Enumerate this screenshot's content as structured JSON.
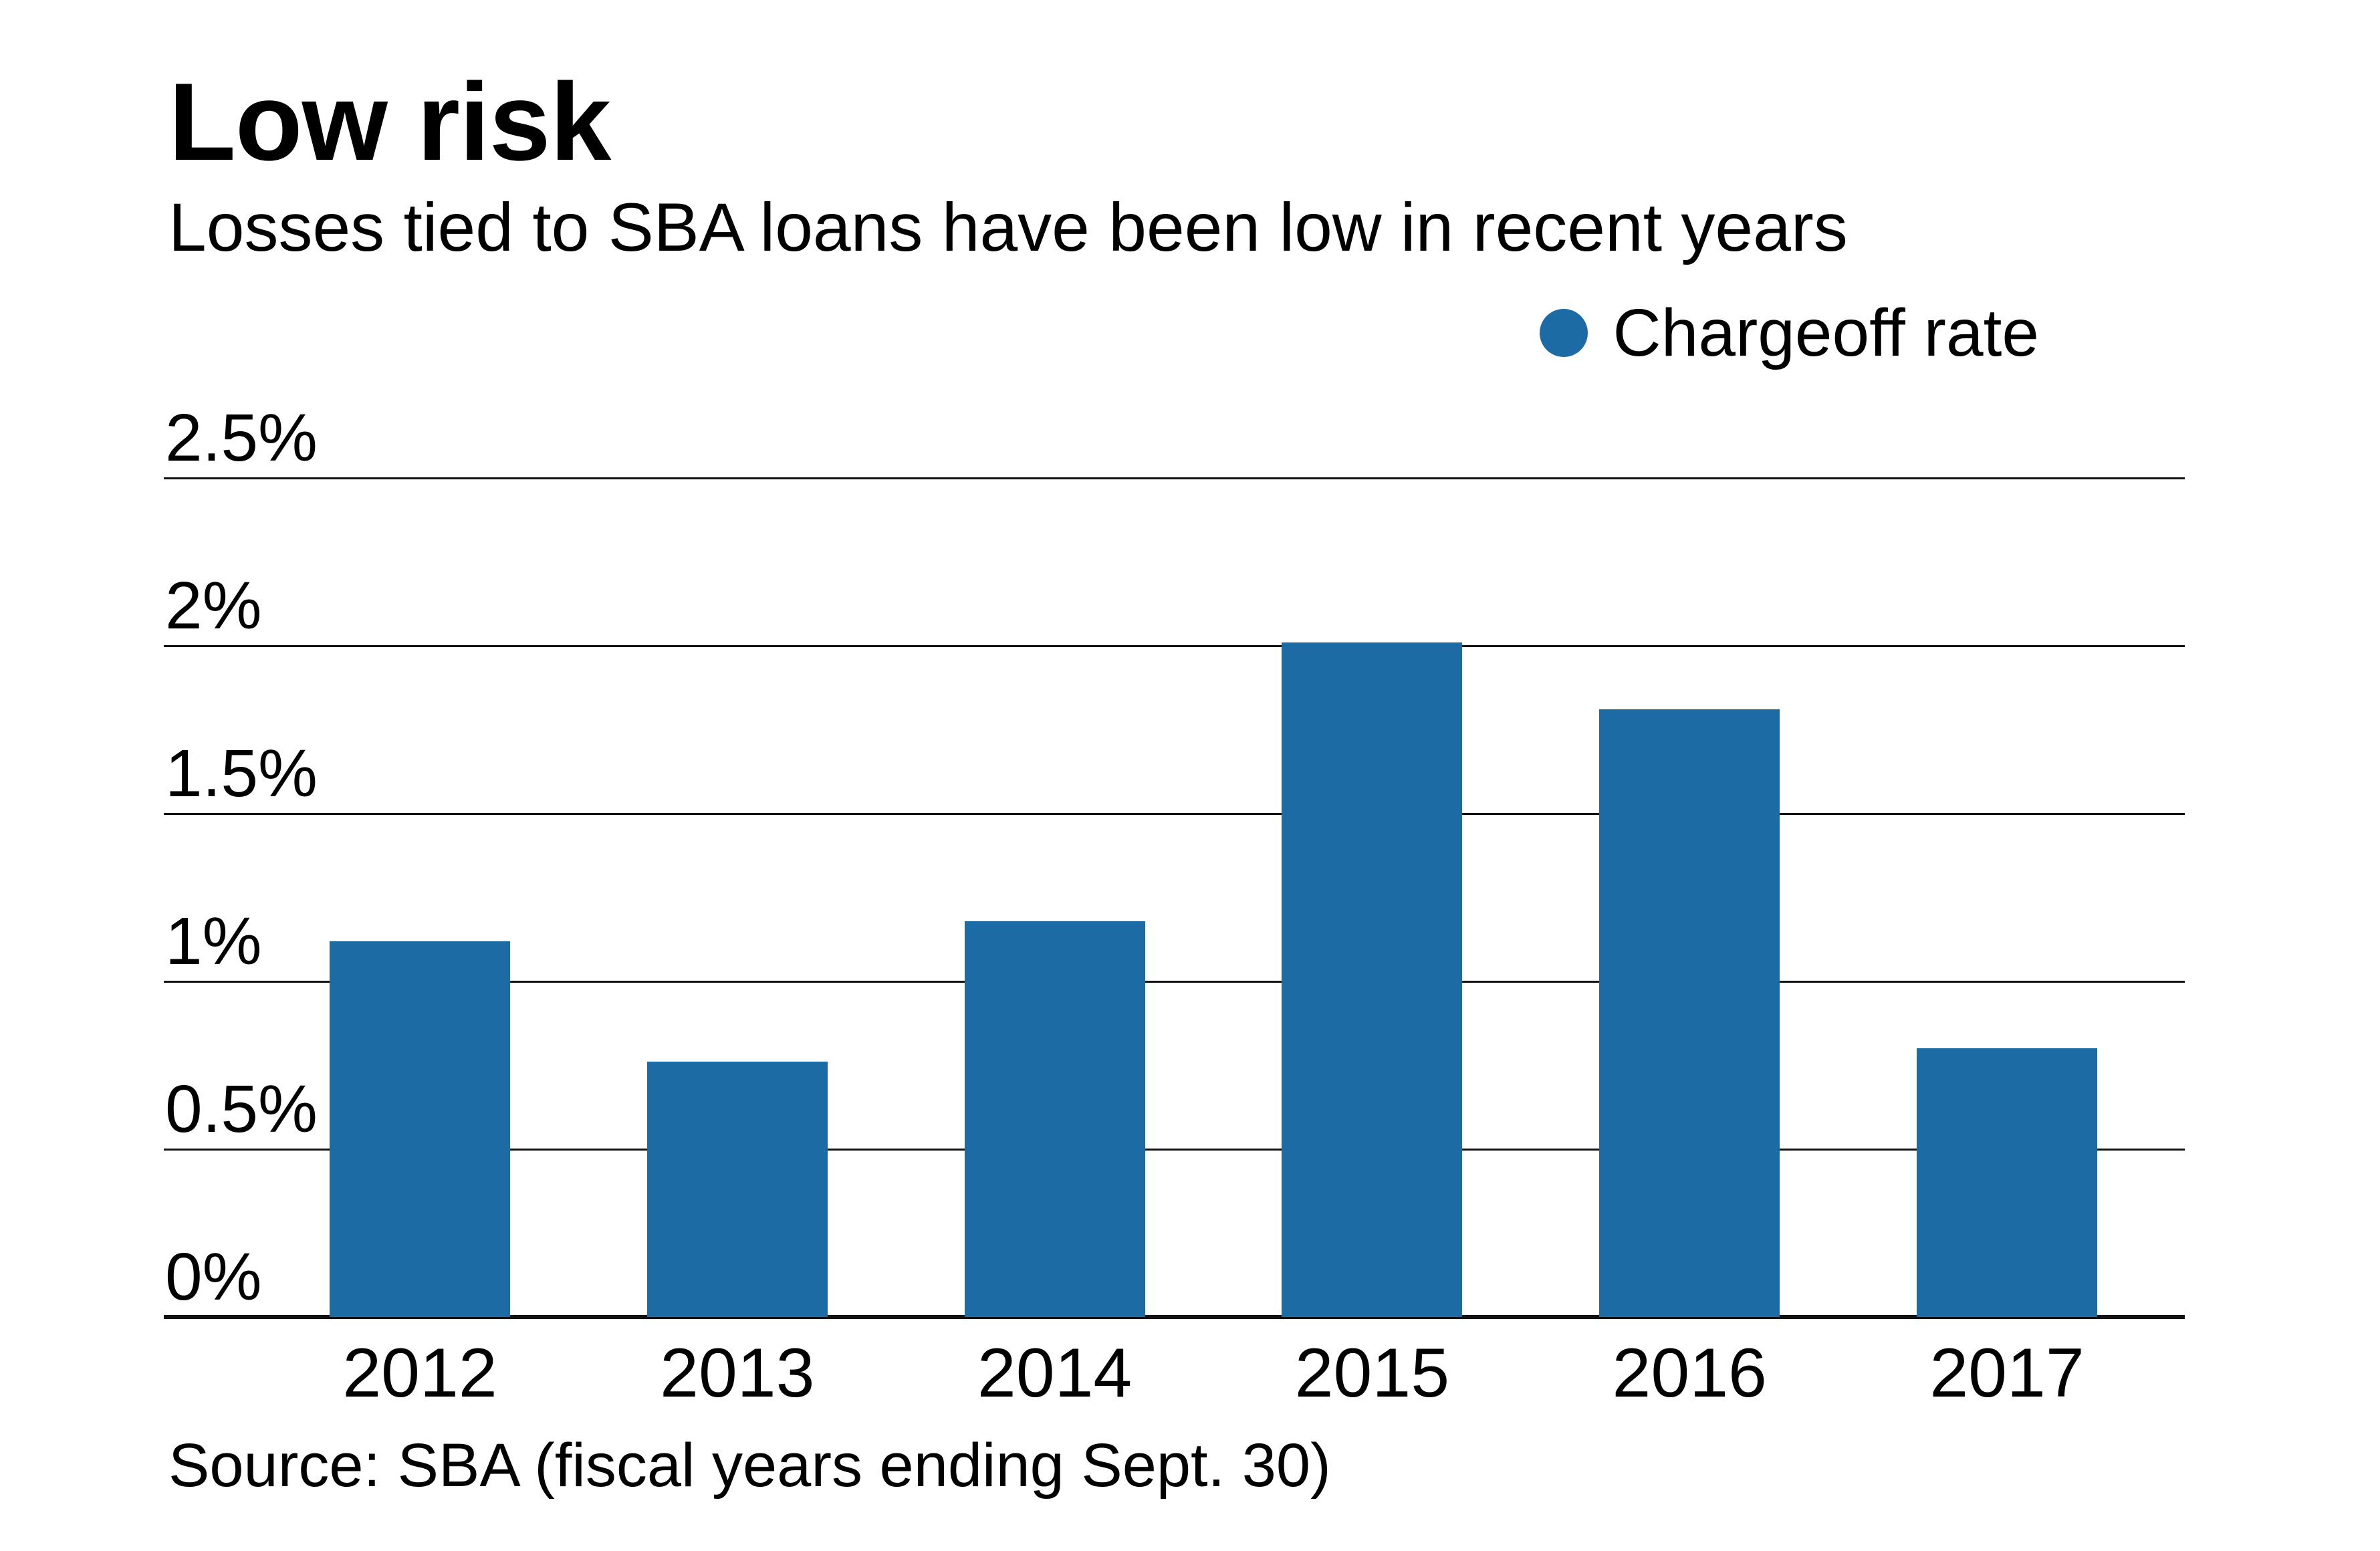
{
  "header": {
    "title": "Low risk",
    "subtitle": "Losses tied to SBA loans have been low in recent years"
  },
  "legend": {
    "label": "Chargeoff rate"
  },
  "footer": {
    "source": "Source: SBA (fiscal years ending Sept. 30)"
  },
  "chart_data": {
    "type": "bar",
    "title": "Low risk",
    "subtitle": "Losses tied to SBA loans have been low in recent years",
    "categories": [
      "2012",
      "2013",
      "2014",
      "2015",
      "2016",
      "2017"
    ],
    "series": [
      {
        "name": "Chargeoff rate",
        "values": [
          1.12,
          0.76,
          1.18,
          2.01,
          1.81,
          0.8
        ],
        "color": "#1d6ba5"
      }
    ],
    "unit": "percent",
    "xlabel": "",
    "ylabel": "",
    "ylim": [
      0,
      2.5
    ],
    "y_ticks": [
      {
        "label": "2.5%",
        "value": 2.5
      },
      {
        "label": "2%",
        "value": 2.0
      },
      {
        "label": "1.5%",
        "value": 1.5
      },
      {
        "label": "1%",
        "value": 1.0
      },
      {
        "label": "0.5%",
        "value": 0.5
      },
      {
        "label": "0%",
        "value": 0.0
      }
    ],
    "grid": true,
    "legend_position": "top-right",
    "source": "Source: SBA (fiscal years ending Sept. 30)"
  },
  "colors": {
    "bar": "#1d6ba5",
    "grid_line": "#111111",
    "baseline": "#111111",
    "text": "#000000",
    "background": "#ffffff"
  }
}
